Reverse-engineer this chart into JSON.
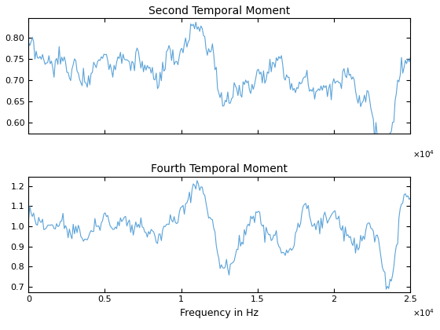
{
  "title1": "Second Temporal Moment",
  "title2": "Fourth Temporal Moment",
  "xlabel": "Frequency in Hz",
  "xlim": [
    0,
    25000
  ],
  "ylim1": [
    0.575,
    0.845
  ],
  "ylim2": [
    0.675,
    1.245
  ],
  "yticks1": [
    0.6,
    0.65,
    0.7,
    0.75,
    0.8
  ],
  "yticks2": [
    0.7,
    0.8,
    0.9,
    1.0,
    1.1,
    1.2
  ],
  "xticks": [
    0,
    5000,
    10000,
    15000,
    20000,
    25000
  ],
  "xticklabels": [
    "0",
    "0.5",
    "1",
    "1.5",
    "2",
    "2.5"
  ],
  "line_color": "#4472C4",
  "line_color2": "#5BA3D9",
  "line_width": 0.8,
  "bg_color": "#ffffff",
  "title_fontsize": 10,
  "tick_fontsize": 8,
  "xlabel_fontsize": 9
}
